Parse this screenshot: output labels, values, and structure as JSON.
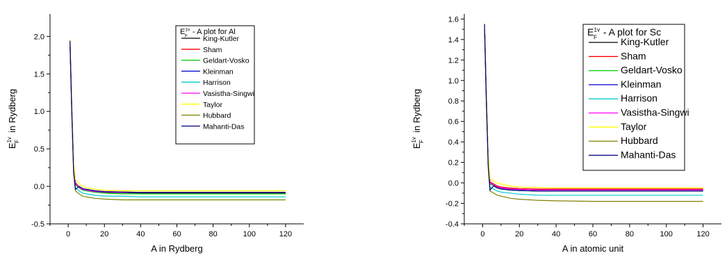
{
  "chart_data": [
    {
      "type": "line",
      "title": "E_F^{1v} - A plot for Al",
      "title_parts": {
        "main": "E",
        "sub": "F",
        "sup": "1v",
        "rest": " - A plot for Al"
      },
      "xlabel": "A in Rydberg",
      "ylabel": "E_F^{1v} in Rydberg",
      "ylabel_parts": {
        "main": "E",
        "sub": "F",
        "sup": "1v",
        "rest": " in Rydberg"
      },
      "xlim": [
        -10,
        130
      ],
      "ylim": [
        -0.5,
        2.3
      ],
      "xticks": [
        0,
        20,
        40,
        60,
        80,
        100,
        120
      ],
      "yticks": [
        -0.5,
        0.0,
        0.5,
        1.0,
        1.5,
        2.0
      ],
      "ytick_labels": [
        "-0.5",
        "0.0",
        "0.5",
        "1.0",
        "1.5",
        "2.0"
      ],
      "grid": false,
      "legend_position": "top-right",
      "x": [
        1,
        2,
        3,
        4,
        6,
        8,
        10,
        15,
        20,
        30,
        40,
        60,
        80,
        100,
        120
      ],
      "series": [
        {
          "name": "King-Kutler",
          "color": "#000000",
          "values": [
            1.95,
            1.05,
            0.3,
            0.05,
            -0.01,
            -0.04,
            -0.05,
            -0.07,
            -0.08,
            -0.085,
            -0.09,
            -0.09,
            -0.09,
            -0.09,
            -0.09
          ]
        },
        {
          "name": "Sham",
          "color": "#ff0000",
          "values": [
            1.93,
            1.02,
            0.28,
            0.04,
            0.0,
            -0.03,
            -0.04,
            -0.06,
            -0.07,
            -0.075,
            -0.08,
            -0.08,
            -0.08,
            -0.08,
            -0.08
          ]
        },
        {
          "name": "Geldart-Vosko",
          "color": "#00cc00",
          "values": [
            1.92,
            1.0,
            0.26,
            0.02,
            -0.02,
            -0.05,
            -0.06,
            -0.08,
            -0.09,
            -0.1,
            -0.1,
            -0.1,
            -0.1,
            -0.1,
            -0.1
          ]
        },
        {
          "name": "Kleinman",
          "color": "#0000cc",
          "values": [
            1.94,
            1.02,
            0.27,
            0.03,
            -0.01,
            -0.04,
            -0.05,
            -0.07,
            -0.075,
            -0.08,
            -0.08,
            -0.08,
            -0.08,
            -0.08,
            -0.08
          ]
        },
        {
          "name": "Harrison",
          "color": "#00cccc",
          "values": [
            1.9,
            0.98,
            0.22,
            -0.02,
            -0.06,
            -0.09,
            -0.1,
            -0.12,
            -0.13,
            -0.13,
            -0.14,
            -0.14,
            -0.14,
            -0.14,
            -0.14
          ]
        },
        {
          "name": "Vasistha-Singwi",
          "color": "#ff00ff",
          "values": [
            1.93,
            1.01,
            0.27,
            0.03,
            -0.01,
            -0.04,
            -0.05,
            -0.07,
            -0.075,
            -0.08,
            -0.08,
            -0.08,
            -0.08,
            -0.08,
            -0.08
          ]
        },
        {
          "name": "Taylor",
          "color": "#ffff00",
          "values": [
            1.96,
            1.07,
            0.33,
            0.09,
            0.04,
            0.0,
            -0.02,
            -0.04,
            -0.05,
            -0.06,
            -0.06,
            -0.06,
            -0.06,
            -0.06,
            -0.06
          ]
        },
        {
          "name": "Hubbard",
          "color": "#808000",
          "values": [
            1.88,
            0.94,
            0.18,
            -0.06,
            -0.1,
            -0.13,
            -0.14,
            -0.16,
            -0.17,
            -0.18,
            -0.18,
            -0.18,
            -0.18,
            -0.18,
            -0.18
          ]
        },
        {
          "name": "Mahanti-Das",
          "color": "#000080",
          "values": [
            1.94,
            1.02,
            0.2,
            -0.04,
            0.0,
            -0.03,
            -0.04,
            -0.06,
            -0.07,
            -0.075,
            -0.08,
            -0.08,
            -0.08,
            -0.08,
            -0.08
          ]
        }
      ]
    },
    {
      "type": "line",
      "title": "E_F^{1v} - A plot for Sc",
      "title_parts": {
        "main": "E",
        "sub": "F",
        "sup": "1v",
        "rest": " - A plot for Sc"
      },
      "xlabel": "A in atomic unit",
      "ylabel": "E_F^{1v} in Rydberg",
      "ylabel_parts": {
        "main": "E",
        "sub": "F",
        "sup": "1v",
        "rest": " in Rydberg"
      },
      "xlim": [
        -10,
        130
      ],
      "ylim": [
        -0.4,
        1.65
      ],
      "xticks": [
        0,
        20,
        40,
        60,
        80,
        100,
        120
      ],
      "yticks": [
        -0.4,
        -0.2,
        0.0,
        0.2,
        0.4,
        0.6,
        0.8,
        1.0,
        1.2,
        1.4,
        1.6
      ],
      "ytick_labels": [
        "-0.4",
        "-0.2",
        "0.0",
        "0.2",
        "0.4",
        "0.6",
        "0.8",
        "1.0",
        "1.2",
        "1.4",
        "1.6"
      ],
      "grid": false,
      "legend_position": "top-right",
      "x": [
        1,
        2,
        3,
        4,
        6,
        8,
        10,
        15,
        20,
        30,
        40,
        60,
        80,
        100,
        120
      ],
      "series": [
        {
          "name": "King-Kutler",
          "color": "#000000",
          "values": [
            1.55,
            0.85,
            0.25,
            0.0,
            -0.02,
            -0.04,
            -0.05,
            -0.06,
            -0.065,
            -0.07,
            -0.07,
            -0.07,
            -0.07,
            -0.07,
            -0.07
          ]
        },
        {
          "name": "Sham",
          "color": "#ff0000",
          "values": [
            1.54,
            0.84,
            0.24,
            0.01,
            -0.01,
            -0.03,
            -0.04,
            -0.05,
            -0.055,
            -0.06,
            -0.06,
            -0.06,
            -0.06,
            -0.06,
            -0.06
          ]
        },
        {
          "name": "Geldart-Vosko",
          "color": "#00cc00",
          "values": [
            1.53,
            0.82,
            0.22,
            -0.01,
            -0.03,
            -0.05,
            -0.06,
            -0.07,
            -0.075,
            -0.08,
            -0.08,
            -0.08,
            -0.08,
            -0.08,
            -0.08
          ]
        },
        {
          "name": "Kleinman",
          "color": "#0000cc",
          "values": [
            1.54,
            0.83,
            0.23,
            0.0,
            -0.02,
            -0.04,
            -0.05,
            -0.06,
            -0.065,
            -0.07,
            -0.07,
            -0.07,
            -0.07,
            -0.07,
            -0.07
          ]
        },
        {
          "name": "Harrison",
          "color": "#00cccc",
          "values": [
            1.52,
            0.8,
            0.19,
            -0.04,
            -0.06,
            -0.08,
            -0.09,
            -0.1,
            -0.11,
            -0.12,
            -0.12,
            -0.12,
            -0.12,
            -0.12,
            -0.12
          ]
        },
        {
          "name": "Vasistha-Singwi",
          "color": "#ff00ff",
          "values": [
            1.54,
            0.83,
            0.23,
            0.0,
            -0.02,
            -0.04,
            -0.05,
            -0.06,
            -0.065,
            -0.07,
            -0.07,
            -0.07,
            -0.07,
            -0.07,
            -0.07
          ]
        },
        {
          "name": "Taylor",
          "color": "#ffff00",
          "values": [
            1.56,
            0.86,
            0.28,
            0.04,
            0.02,
            0.0,
            -0.01,
            -0.03,
            -0.04,
            -0.045,
            -0.05,
            -0.05,
            -0.05,
            -0.05,
            -0.05
          ]
        },
        {
          "name": "Hubbard",
          "color": "#808000",
          "values": [
            1.5,
            0.77,
            0.15,
            -0.08,
            -0.1,
            -0.12,
            -0.13,
            -0.15,
            -0.16,
            -0.17,
            -0.175,
            -0.18,
            -0.18,
            -0.18,
            -0.18
          ]
        },
        {
          "name": "Mahanti-Das",
          "color": "#000080",
          "values": [
            1.55,
            0.84,
            0.18,
            -0.07,
            -0.03,
            -0.05,
            -0.06,
            -0.07,
            -0.075,
            -0.08,
            -0.08,
            -0.08,
            -0.08,
            -0.08,
            -0.08
          ]
        }
      ]
    }
  ]
}
